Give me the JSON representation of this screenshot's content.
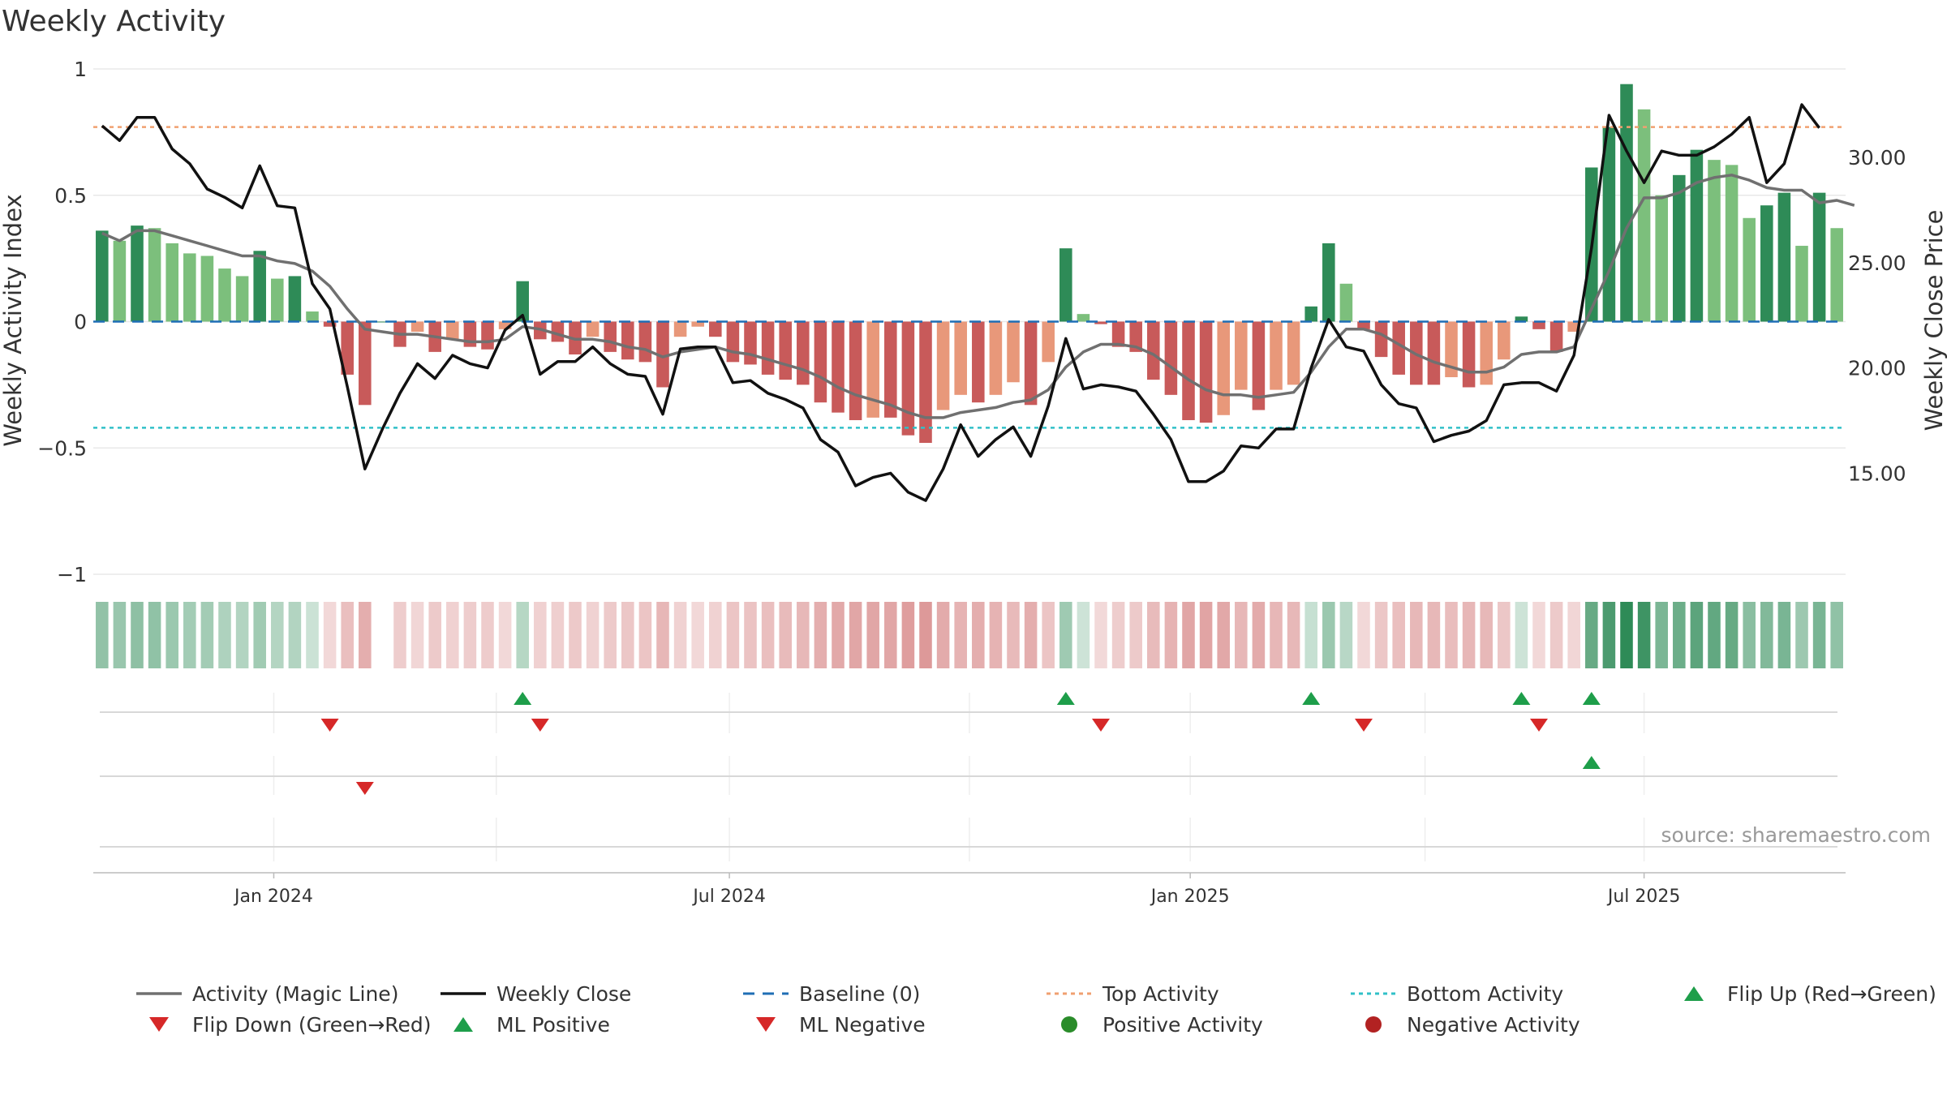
{
  "chart_data": {
    "type": "bar",
    "title": "Weekly Activity",
    "ylabel": "Weekly Activity Index",
    "y2label": "Weekly Close Price",
    "ylim": [
      -1,
      1
    ],
    "y2lim": [
      10.2,
      34.2
    ],
    "y_ticks": [
      {
        "value": 1,
        "label": "1"
      },
      {
        "value": 0.5,
        "label": "0.5"
      },
      {
        "value": 0,
        "label": "0"
      },
      {
        "value": -0.5,
        "label": "−0.5"
      },
      {
        "value": -1,
        "label": "−1"
      }
    ],
    "y2_ticks": [
      {
        "value": 30,
        "label": "30.00"
      },
      {
        "value": 25,
        "label": "25.00"
      },
      {
        "value": 20,
        "label": "20.00"
      },
      {
        "value": 15,
        "label": "15.00"
      }
    ],
    "x_ticks": [
      {
        "week": 10.3,
        "label": "Jan 2024"
      },
      {
        "week": 36.3,
        "label": "Jul 2024"
      },
      {
        "week": 62.6,
        "label": "Jan 2025"
      },
      {
        "week": 88.5,
        "label": "Jul 2025"
      }
    ],
    "top_activity": 0.77,
    "bottom_activity": -0.42,
    "activity": [
      0.36,
      0.32,
      0.38,
      0.37,
      0.31,
      0.27,
      0.26,
      0.21,
      0.18,
      0.28,
      0.17,
      0.18,
      0.04,
      -0.02,
      -0.21,
      -0.33,
      0,
      -0.1,
      -0.04,
      -0.12,
      -0.07,
      -0.1,
      -0.11,
      -0.03,
      0.16,
      -0.07,
      -0.08,
      -0.13,
      -0.06,
      -0.12,
      -0.15,
      -0.16,
      -0.26,
      -0.06,
      -0.02,
      -0.06,
      -0.16,
      -0.17,
      -0.21,
      -0.23,
      -0.25,
      -0.32,
      -0.36,
      -0.39,
      -0.38,
      -0.38,
      -0.45,
      -0.48,
      -0.35,
      -0.29,
      -0.32,
      -0.29,
      -0.24,
      -0.33,
      -0.16,
      0.29,
      0.03,
      -0.01,
      -0.1,
      -0.12,
      -0.23,
      -0.29,
      -0.39,
      -0.4,
      -0.37,
      -0.27,
      -0.35,
      -0.27,
      -0.25,
      0.06,
      0.31,
      0.15,
      -0.03,
      -0.14,
      -0.21,
      -0.25,
      -0.25,
      -0.22,
      -0.26,
      -0.25,
      -0.15,
      0.02,
      -0.03,
      -0.12,
      -0.04,
      0.61,
      0.77,
      0.94,
      0.84,
      0.5,
      0.58,
      0.68,
      0.64,
      0.62,
      0.41,
      0.46,
      0.51,
      0.3,
      0.51,
      0.37
    ],
    "magic_line": [
      0.35,
      0.32,
      0.36,
      0.36,
      0.34,
      0.32,
      0.3,
      0.28,
      0.26,
      0.26,
      0.24,
      0.23,
      0.2,
      0.14,
      0.05,
      -0.03,
      -0.04,
      -0.05,
      -0.05,
      -0.06,
      -0.07,
      -0.08,
      -0.08,
      -0.07,
      -0.02,
      -0.03,
      -0.05,
      -0.07,
      -0.07,
      -0.08,
      -0.1,
      -0.11,
      -0.14,
      -0.12,
      -0.11,
      -0.1,
      -0.12,
      -0.13,
      -0.15,
      -0.17,
      -0.19,
      -0.22,
      -0.26,
      -0.29,
      -0.31,
      -0.33,
      -0.36,
      -0.38,
      -0.38,
      -0.36,
      -0.35,
      -0.34,
      -0.32,
      -0.31,
      -0.27,
      -0.18,
      -0.12,
      -0.09,
      -0.09,
      -0.1,
      -0.13,
      -0.18,
      -0.23,
      -0.27,
      -0.29,
      -0.29,
      -0.3,
      -0.29,
      -0.28,
      -0.2,
      -0.1,
      -0.03,
      -0.03,
      -0.05,
      -0.09,
      -0.13,
      -0.16,
      -0.18,
      -0.2,
      -0.2,
      -0.18,
      -0.13,
      -0.12,
      -0.12,
      -0.1,
      0.05,
      0.2,
      0.37,
      0.49,
      0.49,
      0.51,
      0.55,
      0.57,
      0.58,
      0.56,
      0.53,
      0.52,
      0.52,
      0.47,
      0.48,
      0.46
    ],
    "weekly_close": [
      31.5,
      30.8,
      31.9,
      31.9,
      30.4,
      29.7,
      28.5,
      28.1,
      27.6,
      29.6,
      27.7,
      27.6,
      24.0,
      22.8,
      19.1,
      15.2,
      17.1,
      18.8,
      20.2,
      19.5,
      20.6,
      20.2,
      20.0,
      21.8,
      22.5,
      19.7,
      20.3,
      20.3,
      21.0,
      20.2,
      19.7,
      19.6,
      17.8,
      20.9,
      21.0,
      21.0,
      19.3,
      19.4,
      18.8,
      18.5,
      18.1,
      16.6,
      16.0,
      14.4,
      14.8,
      15.0,
      14.1,
      13.7,
      15.2,
      17.3,
      15.8,
      16.6,
      17.2,
      15.8,
      18.2,
      21.4,
      19.0,
      19.2,
      19.1,
      18.9,
      17.8,
      16.6,
      14.6,
      14.6,
      15.1,
      16.3,
      16.2,
      17.1,
      17.1,
      20.0,
      22.3,
      21.0,
      20.8,
      19.2,
      18.3,
      18.1,
      16.5,
      16.8,
      17.0,
      17.5,
      19.2,
      19.3,
      19.3,
      18.9,
      20.6,
      25.7,
      32.0,
      30.3,
      28.8,
      30.3,
      30.1,
      30.1,
      30.5,
      31.1,
      31.9,
      28.8,
      29.7,
      32.5,
      31.4
    ],
    "flip_up_row1": [
      24,
      55,
      69,
      81,
      85
    ],
    "flip_down_row1": [
      13,
      25,
      57,
      72,
      82
    ],
    "flip_up_row2": [
      85
    ],
    "flip_down_row2": [
      15
    ],
    "heat_gap_weeks": [
      16
    ],
    "colors": {
      "strong_green": "#2e8b57",
      "light_green": "#7cbf7c",
      "strong_red": "#c85a5a",
      "light_red": "#e8987a",
      "magic_line": "#707070",
      "close_line": "#111111",
      "baseline": "#1f6eb5",
      "top_line": "#f0a070",
      "bottom_line": "#30c0c8",
      "up_marker": "#1e9e4a",
      "down_marker": "#d62828",
      "pos_dot": "#2a8c2a",
      "neg_dot": "#b22222"
    },
    "legend": [
      {
        "label": "Activity (Magic Line)",
        "symbol": "line",
        "color": "#707070"
      },
      {
        "label": "Weekly Close",
        "symbol": "line",
        "color": "#111111"
      },
      {
        "label": "Baseline (0)",
        "symbol": "dash",
        "color": "#1f6eb5"
      },
      {
        "label": "Top Activity",
        "symbol": "dot",
        "color": "#f0a070"
      },
      {
        "label": "Bottom Activity",
        "symbol": "dot",
        "color": "#30c0c8"
      },
      {
        "label": "Flip Up (Red→Green)",
        "symbol": "tri-up",
        "color": "#1e9e4a"
      },
      {
        "label": "Flip Down (Green→Red)",
        "symbol": "tri-down",
        "color": "#d62828"
      },
      {
        "label": "ML Positive",
        "symbol": "tri-up",
        "color": "#1e9e4a"
      },
      {
        "label": "ML Negative",
        "symbol": "tri-down",
        "color": "#d62828"
      },
      {
        "label": "Positive Activity",
        "symbol": "circle",
        "color": "#2a8c2a"
      },
      {
        "label": "Negative Activity",
        "symbol": "circle",
        "color": "#b22222"
      }
    ],
    "source_note": "source: sharemaestro.com"
  }
}
